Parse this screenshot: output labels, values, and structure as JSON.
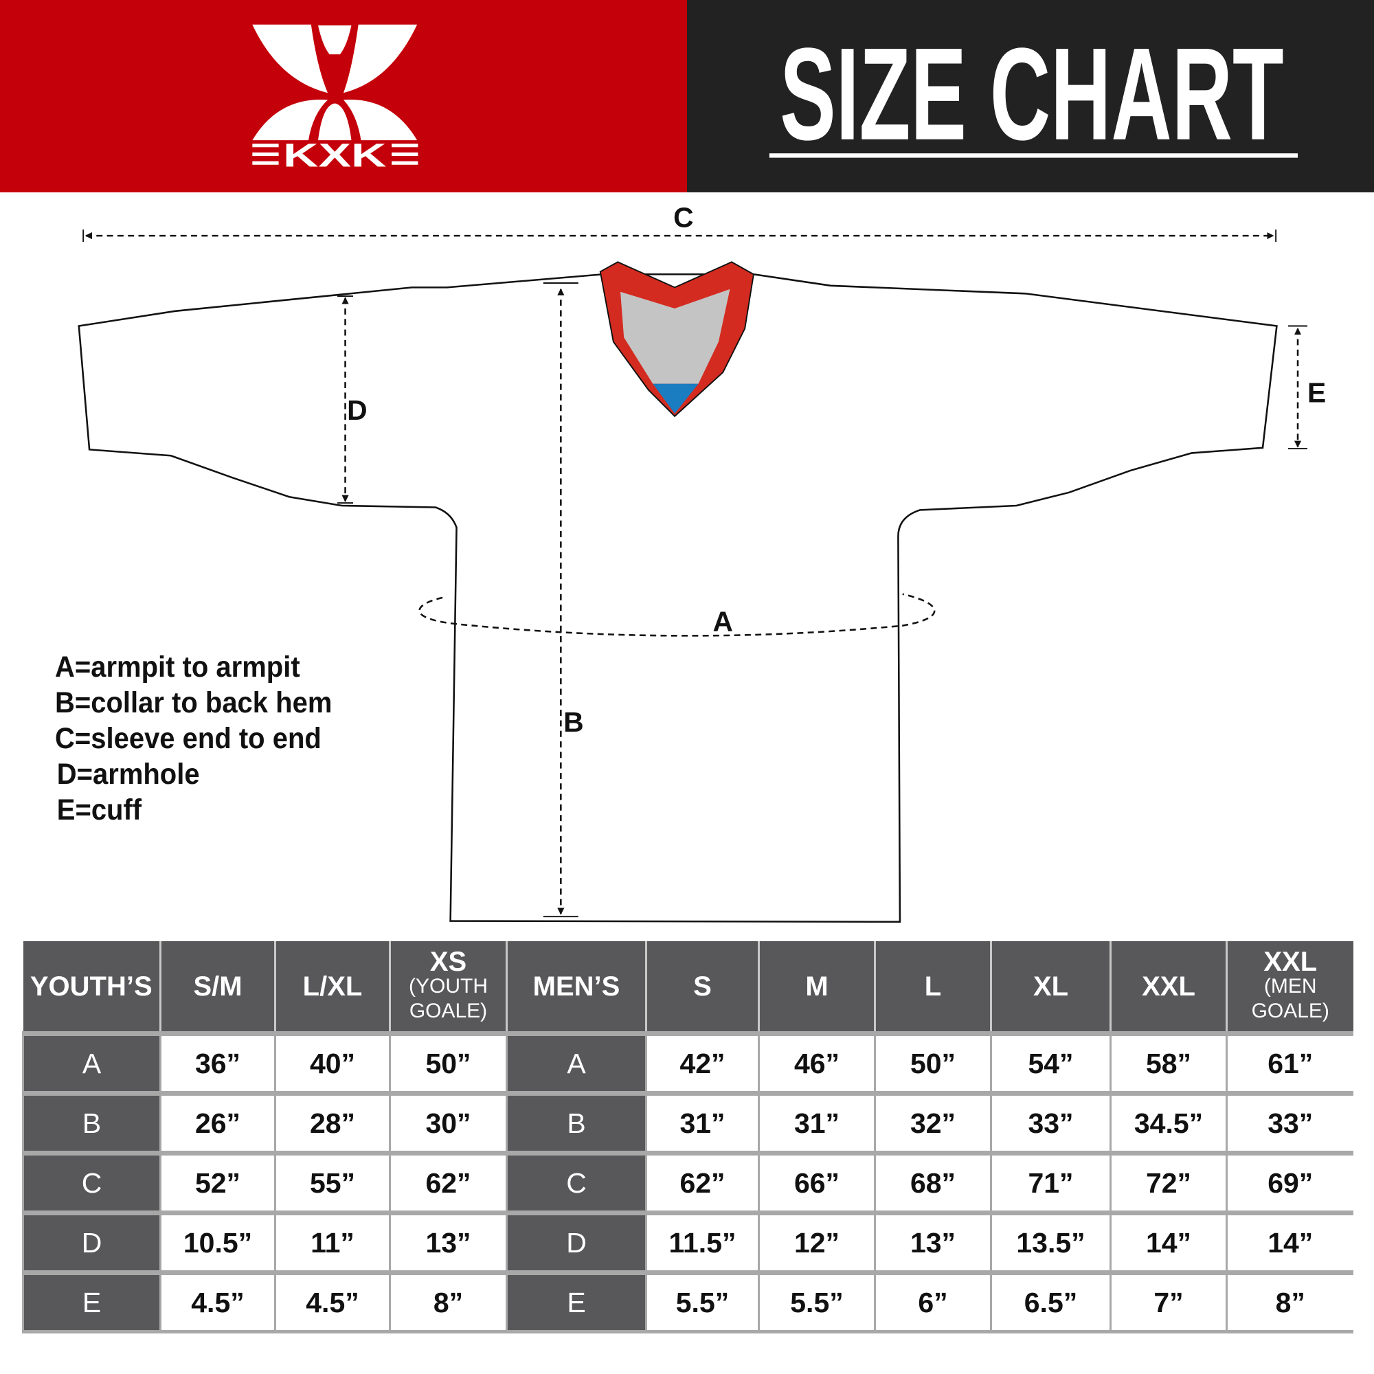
{
  "header": {
    "brand": "KXK",
    "title": "SIZE CHART",
    "colors": {
      "brand_red": "#c4000a",
      "dark": "#222222",
      "table_gray": "#58585a"
    }
  },
  "diagram": {
    "labels": {
      "a": "A",
      "b": "B",
      "c": "C",
      "d": "D",
      "e": "E"
    },
    "legend": [
      "A=armpit to armpit",
      "B=collar to back hem",
      "C=sleeve end to end",
      "D=armhole",
      "E=cuff"
    ]
  },
  "table": {
    "youth_header": "YOUTH’S",
    "men_header": "MEN’S",
    "youth_sizes": [
      {
        "label": "S/M",
        "sub": ""
      },
      {
        "label": "L/XL",
        "sub": ""
      },
      {
        "label": "XS",
        "sub": "(YOUTH GOALE)"
      }
    ],
    "men_sizes": [
      {
        "label": "S",
        "sub": ""
      },
      {
        "label": "M",
        "sub": ""
      },
      {
        "label": "L",
        "sub": ""
      },
      {
        "label": "XL",
        "sub": ""
      },
      {
        "label": "XXL",
        "sub": ""
      },
      {
        "label": "XXL",
        "sub": "(MEN GOALE)"
      }
    ],
    "rows": [
      {
        "label": "A",
        "youth": [
          "36”",
          "40”",
          "50”"
        ],
        "men": [
          "42”",
          "46”",
          "50”",
          "54”",
          "58”",
          "61”"
        ]
      },
      {
        "label": "B",
        "youth": [
          "26”",
          "28”",
          "30”"
        ],
        "men": [
          "31”",
          "31”",
          "32”",
          "33”",
          "34.5”",
          "33”"
        ]
      },
      {
        "label": "C",
        "youth": [
          "52”",
          "55”",
          "62”"
        ],
        "men": [
          "62”",
          "66”",
          "68”",
          "71”",
          "72”",
          "69”"
        ]
      },
      {
        "label": "D",
        "youth": [
          "10.5”",
          "11”",
          "13”"
        ],
        "men": [
          "11.5”",
          "12”",
          "13”",
          "13.5”",
          "14”",
          "14”"
        ]
      },
      {
        "label": "E",
        "youth": [
          "4.5”",
          "4.5”",
          "8”"
        ],
        "men": [
          "5.5”",
          "5.5”",
          "6”",
          "6.5”",
          "7”",
          "8”"
        ]
      }
    ]
  }
}
